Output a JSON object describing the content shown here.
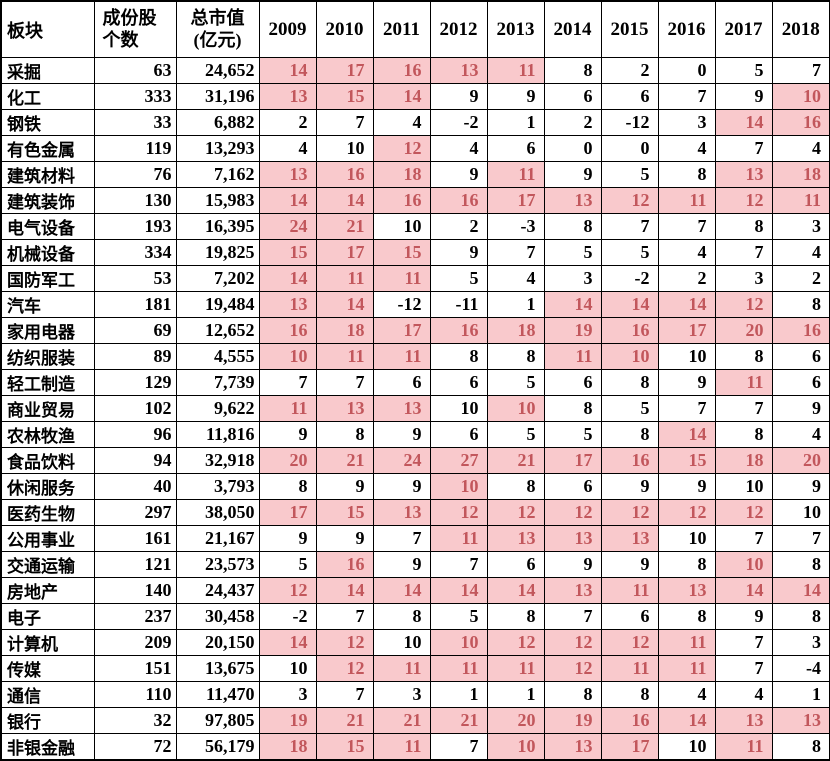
{
  "chart_data": {
    "type": "table",
    "header": {
      "sector": "板块",
      "count_lines": [
        "成份股",
        "个数"
      ],
      "market_cap_lines": [
        "总市值",
        "(亿元)"
      ],
      "years": [
        "2009",
        "2010",
        "2011",
        "2012",
        "2013",
        "2014",
        "2015",
        "2016",
        "2017",
        "2018"
      ]
    },
    "rows": [
      {
        "sector": "采掘",
        "count": "63",
        "market_cap": "24,652",
        "values": [
          14,
          17,
          16,
          13,
          11,
          8,
          2,
          0,
          5,
          7
        ],
        "highlight": [
          1,
          1,
          1,
          1,
          1,
          0,
          0,
          0,
          0,
          0
        ]
      },
      {
        "sector": "化工",
        "count": "333",
        "market_cap": "31,196",
        "values": [
          13,
          15,
          14,
          9,
          9,
          6,
          6,
          7,
          9,
          10
        ],
        "highlight": [
          1,
          1,
          1,
          0,
          0,
          0,
          0,
          0,
          0,
          1
        ]
      },
      {
        "sector": "钢铁",
        "count": "33",
        "market_cap": "6,882",
        "values": [
          2,
          7,
          4,
          -2,
          1,
          2,
          -12,
          3,
          14,
          16
        ],
        "highlight": [
          0,
          0,
          0,
          0,
          0,
          0,
          0,
          0,
          1,
          1
        ]
      },
      {
        "sector": "有色金属",
        "count": "119",
        "market_cap": "13,293",
        "values": [
          4,
          10,
          12,
          4,
          6,
          0,
          0,
          4,
          7,
          4
        ],
        "highlight": [
          0,
          0,
          1,
          0,
          0,
          0,
          0,
          0,
          0,
          0
        ]
      },
      {
        "sector": "建筑材料",
        "count": "76",
        "market_cap": "7,162",
        "values": [
          13,
          16,
          18,
          9,
          11,
          9,
          5,
          8,
          13,
          18
        ],
        "highlight": [
          1,
          1,
          1,
          0,
          1,
          0,
          0,
          0,
          1,
          1
        ]
      },
      {
        "sector": "建筑装饰",
        "count": "130",
        "market_cap": "15,983",
        "values": [
          14,
          14,
          16,
          16,
          17,
          13,
          12,
          11,
          12,
          11
        ],
        "highlight": [
          1,
          1,
          1,
          1,
          1,
          1,
          1,
          1,
          1,
          1
        ]
      },
      {
        "sector": "电气设备",
        "count": "193",
        "market_cap": "16,395",
        "values": [
          24,
          21,
          10,
          2,
          -3,
          8,
          7,
          7,
          8,
          3
        ],
        "highlight": [
          1,
          1,
          0,
          0,
          0,
          0,
          0,
          0,
          0,
          0
        ]
      },
      {
        "sector": "机械设备",
        "count": "334",
        "market_cap": "19,825",
        "values": [
          15,
          17,
          15,
          9,
          7,
          5,
          5,
          4,
          7,
          4
        ],
        "highlight": [
          1,
          1,
          1,
          0,
          0,
          0,
          0,
          0,
          0,
          0
        ]
      },
      {
        "sector": "国防军工",
        "count": "53",
        "market_cap": "7,202",
        "values": [
          14,
          11,
          11,
          5,
          4,
          3,
          -2,
          2,
          3,
          2
        ],
        "highlight": [
          1,
          1,
          1,
          0,
          0,
          0,
          0,
          0,
          0,
          0
        ]
      },
      {
        "sector": "汽车",
        "count": "181",
        "market_cap": "19,484",
        "values": [
          13,
          14,
          -12,
          -11,
          1,
          14,
          14,
          14,
          12,
          8
        ],
        "highlight": [
          1,
          1,
          0,
          0,
          0,
          1,
          1,
          1,
          1,
          0
        ]
      },
      {
        "sector": "家用电器",
        "count": "69",
        "market_cap": "12,652",
        "values": [
          16,
          18,
          17,
          16,
          18,
          19,
          16,
          17,
          20,
          16
        ],
        "highlight": [
          1,
          1,
          1,
          1,
          1,
          1,
          1,
          1,
          1,
          1
        ]
      },
      {
        "sector": "纺织服装",
        "count": "89",
        "market_cap": "4,555",
        "values": [
          10,
          11,
          11,
          8,
          8,
          11,
          10,
          10,
          8,
          6
        ],
        "highlight": [
          1,
          1,
          1,
          0,
          0,
          1,
          1,
          0,
          0,
          0
        ]
      },
      {
        "sector": "轻工制造",
        "count": "129",
        "market_cap": "7,739",
        "values": [
          7,
          7,
          6,
          6,
          5,
          6,
          8,
          9,
          11,
          6
        ],
        "highlight": [
          0,
          0,
          0,
          0,
          0,
          0,
          0,
          0,
          1,
          0
        ]
      },
      {
        "sector": "商业贸易",
        "count": "102",
        "market_cap": "9,622",
        "values": [
          11,
          13,
          13,
          10,
          10,
          8,
          5,
          7,
          7,
          9
        ],
        "highlight": [
          1,
          1,
          1,
          0,
          1,
          0,
          0,
          0,
          0,
          0
        ]
      },
      {
        "sector": "农林牧渔",
        "count": "96",
        "market_cap": "11,816",
        "values": [
          9,
          8,
          9,
          6,
          5,
          5,
          8,
          14,
          8,
          4
        ],
        "highlight": [
          0,
          0,
          0,
          0,
          0,
          0,
          0,
          1,
          0,
          0
        ]
      },
      {
        "sector": "食品饮料",
        "count": "94",
        "market_cap": "32,918",
        "values": [
          20,
          21,
          24,
          27,
          21,
          17,
          16,
          15,
          18,
          20
        ],
        "highlight": [
          1,
          1,
          1,
          1,
          1,
          1,
          1,
          1,
          1,
          1
        ]
      },
      {
        "sector": "休闲服务",
        "count": "40",
        "market_cap": "3,793",
        "values": [
          8,
          9,
          9,
          10,
          8,
          6,
          9,
          9,
          10,
          9
        ],
        "highlight": [
          0,
          0,
          0,
          1,
          0,
          0,
          0,
          0,
          0,
          0
        ]
      },
      {
        "sector": "医药生物",
        "count": "297",
        "market_cap": "38,050",
        "values": [
          17,
          15,
          13,
          12,
          12,
          12,
          12,
          12,
          12,
          10
        ],
        "highlight": [
          1,
          1,
          1,
          1,
          1,
          1,
          1,
          1,
          1,
          0
        ]
      },
      {
        "sector": "公用事业",
        "count": "161",
        "market_cap": "21,167",
        "values": [
          9,
          9,
          7,
          11,
          13,
          13,
          13,
          10,
          7,
          7
        ],
        "highlight": [
          0,
          0,
          0,
          1,
          1,
          1,
          1,
          0,
          0,
          0
        ]
      },
      {
        "sector": "交通运输",
        "count": "121",
        "market_cap": "23,573",
        "values": [
          5,
          16,
          9,
          7,
          6,
          9,
          9,
          8,
          10,
          8
        ],
        "highlight": [
          0,
          1,
          0,
          0,
          0,
          0,
          0,
          0,
          1,
          0
        ]
      },
      {
        "sector": "房地产",
        "count": "140",
        "market_cap": "24,437",
        "values": [
          12,
          14,
          14,
          14,
          14,
          13,
          11,
          13,
          14,
          14
        ],
        "highlight": [
          1,
          1,
          1,
          1,
          1,
          1,
          1,
          1,
          1,
          1
        ]
      },
      {
        "sector": "电子",
        "count": "237",
        "market_cap": "30,458",
        "values": [
          -2,
          7,
          8,
          5,
          8,
          7,
          6,
          8,
          9,
          8
        ],
        "highlight": [
          0,
          0,
          0,
          0,
          0,
          0,
          0,
          0,
          0,
          0
        ]
      },
      {
        "sector": "计算机",
        "count": "209",
        "market_cap": "20,150",
        "values": [
          14,
          12,
          10,
          10,
          12,
          12,
          12,
          11,
          7,
          3
        ],
        "highlight": [
          1,
          1,
          0,
          1,
          1,
          1,
          1,
          1,
          0,
          0
        ]
      },
      {
        "sector": "传媒",
        "count": "151",
        "market_cap": "13,675",
        "values": [
          10,
          12,
          11,
          11,
          11,
          12,
          11,
          11,
          7,
          -4
        ],
        "highlight": [
          0,
          1,
          1,
          1,
          1,
          1,
          1,
          1,
          0,
          0
        ]
      },
      {
        "sector": "通信",
        "count": "110",
        "market_cap": "11,470",
        "values": [
          3,
          7,
          3,
          1,
          1,
          8,
          8,
          4,
          4,
          1
        ],
        "highlight": [
          0,
          0,
          0,
          0,
          0,
          0,
          0,
          0,
          0,
          0
        ]
      },
      {
        "sector": "银行",
        "count": "32",
        "market_cap": "97,805",
        "values": [
          19,
          21,
          21,
          21,
          20,
          19,
          16,
          14,
          13,
          13
        ],
        "highlight": [
          1,
          1,
          1,
          1,
          1,
          1,
          1,
          1,
          1,
          1
        ]
      },
      {
        "sector": "非银金融",
        "count": "72",
        "market_cap": "56,179",
        "values": [
          18,
          15,
          11,
          7,
          10,
          13,
          17,
          10,
          11,
          8
        ],
        "highlight": [
          1,
          1,
          1,
          0,
          1,
          1,
          1,
          0,
          1,
          0
        ]
      }
    ]
  },
  "colors": {
    "highlight_bg": "#F9C9CC",
    "highlight_text": "#C2575C",
    "grid": "#000000",
    "text": "#000000",
    "background": "#FFFFFF"
  }
}
